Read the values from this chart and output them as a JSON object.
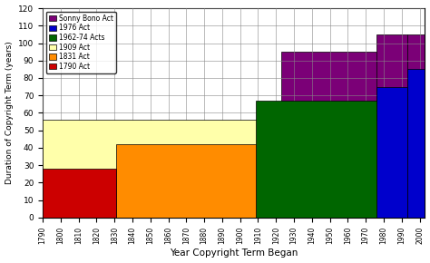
{
  "title": "",
  "xlabel": "Year Copyright Term Began",
  "ylabel": "Duration of Copyright Term (years)",
  "xlim": [
    1790,
    2003
  ],
  "ylim": [
    0,
    120
  ],
  "yticks": [
    0,
    10,
    20,
    30,
    40,
    50,
    60,
    70,
    80,
    90,
    100,
    110,
    120
  ],
  "xticks": [
    1790,
    1800,
    1810,
    1820,
    1830,
    1840,
    1850,
    1860,
    1870,
    1880,
    1890,
    1900,
    1910,
    1920,
    1930,
    1940,
    1950,
    1960,
    1970,
    1980,
    1990,
    2000
  ],
  "bars": [
    {
      "label": "1790 Act",
      "x_start": 1790,
      "x_end": 1831,
      "height": 28,
      "color": "#cc0000",
      "zorder": 6
    },
    {
      "label": "1831 Act",
      "x_start": 1831,
      "x_end": 1909,
      "height": 42,
      "color": "#ff8c00",
      "zorder": 5
    },
    {
      "label": "1909 Act",
      "x_start": 1790,
      "x_end": 1976,
      "height": 56,
      "color": "#ffffaa",
      "zorder": 3
    },
    {
      "label": "1962-74 Acts",
      "x_start": 1909,
      "x_end": 1976,
      "height": 67,
      "color": "#006600",
      "zorder": 4
    },
    {
      "label": "1976 Act",
      "x_start": 1976,
      "x_end": 2003,
      "height": 85,
      "color": "#0000cc",
      "zorder": 5
    },
    {
      "label": "Sonny Bono Act",
      "x_start": 1923,
      "x_end": 2003,
      "height": 95,
      "color": "#800080",
      "zorder": 2
    }
  ],
  "sonny_steps": [
    {
      "x_start": 1923,
      "x_end": 1976,
      "height": 95
    },
    {
      "x_start": 1976,
      "x_end": 1993,
      "height": 105
    },
    {
      "x_start": 1993,
      "x_end": 2003,
      "height": 105
    }
  ],
  "legend_order": [
    "Sonny Bono Act",
    "1976 Act",
    "1962-74 Acts",
    "1909 Act",
    "1831 Act",
    "1790 Act"
  ],
  "bg_color": "#ffffff",
  "grid_color": "#888888"
}
